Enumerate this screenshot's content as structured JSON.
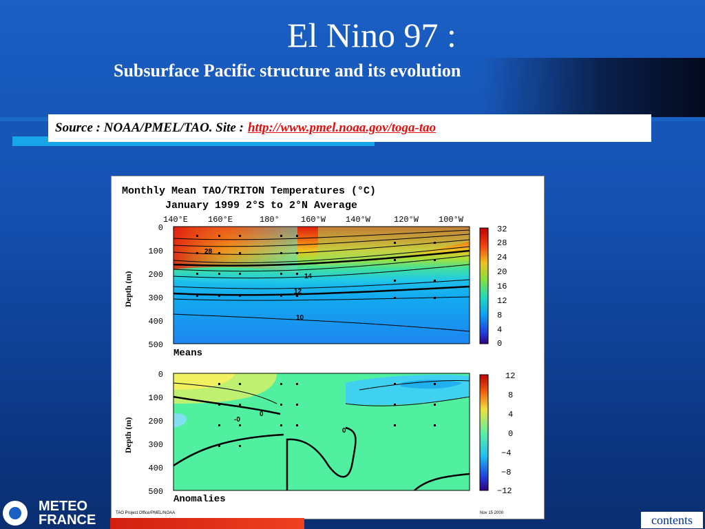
{
  "slide": {
    "title": "El Nino 97 :",
    "subtitle": "Subsurface Pacific structure and its evolution",
    "source_label": "Source : NOAA/PMEL/TAO.  Site :",
    "source_link": "http://www.pmel.noaa.gov/toga-tao",
    "contents_label": "contents",
    "logo_line1": "METEO",
    "logo_line2": "FRANCE"
  },
  "figure": {
    "title": "Monthly Mean TAO/TRITON Temperatures (°C)",
    "subtitle": "January 1999    2°S to 2°N Average",
    "longitudes": [
      "140°E",
      "160°E",
      "180°",
      "160°W",
      "140°W",
      "120°W",
      "100°W"
    ],
    "depth_label": "Depth (m)",
    "depths": [
      "0",
      "100",
      "200",
      "300",
      "400",
      "500"
    ],
    "means_label": "Means",
    "anomalies_label": "Anomalies",
    "means_scale": [
      "32",
      "28",
      "24",
      "20",
      "16",
      "12",
      "8",
      "4",
      "0"
    ],
    "anomaly_scale": [
      "12",
      "8",
      "4",
      "0",
      "−4",
      "−8",
      "−12"
    ],
    "means_contour_labels": [
      "28",
      "14",
      "12",
      "10"
    ],
    "anomaly_contour_labels": [
      "0",
      "-0",
      "0"
    ],
    "footer_left": "TAO Project Office/PMEL/NOAA",
    "footer_right": "Nov 15 2000"
  }
}
